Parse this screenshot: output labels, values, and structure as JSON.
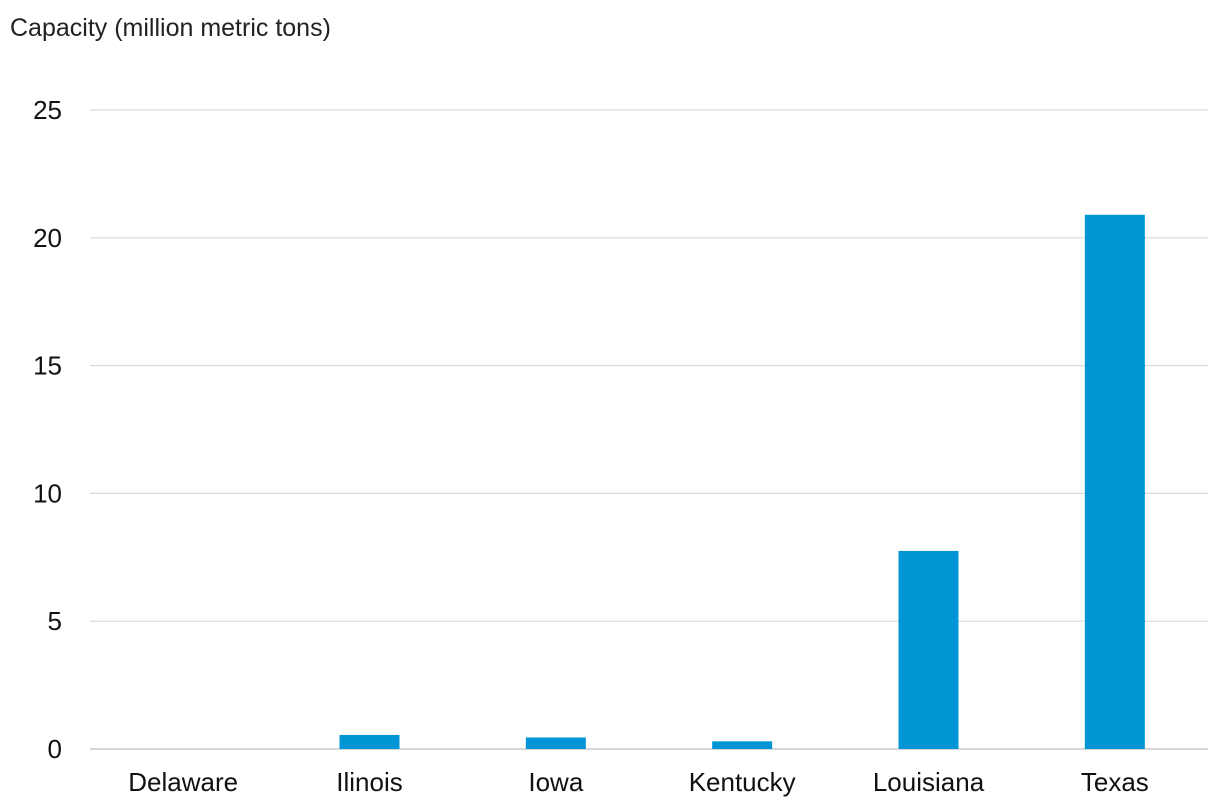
{
  "chart_data": {
    "type": "bar",
    "ylabel": "Capacity (million metric tons)",
    "categories": [
      "Delaware",
      "Ilinois",
      "Iowa",
      "Kentucky",
      "Louisiana",
      "Texas"
    ],
    "values": [
      0,
      0.55,
      0.45,
      0.3,
      7.75,
      20.9
    ],
    "ylim": [
      0,
      25
    ],
    "yticks": [
      0,
      5,
      10,
      15,
      20,
      25
    ],
    "grid": true,
    "colors": {
      "bar": "#0096d6",
      "grid": "#d9d9d9",
      "axis": "#c8c8c8"
    }
  }
}
